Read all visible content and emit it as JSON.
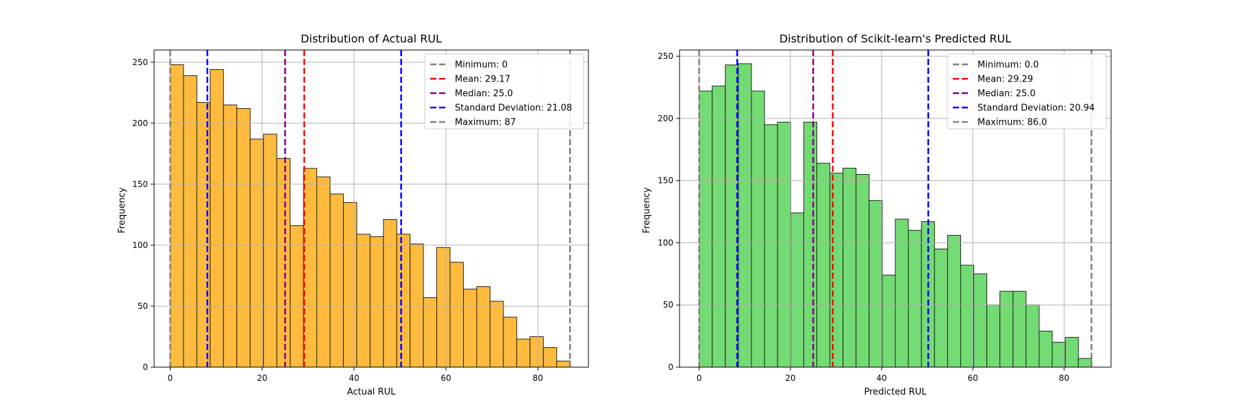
{
  "chart_data": [
    {
      "type": "bar",
      "title": "Distribution of Actual RUL",
      "xlabel": "Actual RUL",
      "ylabel": "Frequency",
      "xlim": [
        -3.5,
        91
      ],
      "ylim": [
        0,
        260
      ],
      "xticks": [
        "0",
        "20",
        "40",
        "60",
        "80"
      ],
      "xtick_values": [
        0,
        20,
        40,
        60,
        80
      ],
      "yticks": [
        "0",
        "50",
        "100",
        "150",
        "200",
        "250"
      ],
      "ytick_values": [
        0,
        50,
        100,
        150,
        200,
        250
      ],
      "grid": true,
      "legend_position": "top-right",
      "bar_color": "#FFB733",
      "bin_start": 0,
      "bin_end": 87,
      "values": [
        248,
        239,
        217,
        244,
        215,
        212,
        187,
        191,
        171,
        116,
        163,
        156,
        142,
        135,
        109,
        107,
        121,
        109,
        101,
        57,
        98,
        86,
        64,
        66,
        54,
        41,
        23,
        25,
        16,
        5
      ],
      "reference_lines": [
        {
          "label": "Minimum: 0",
          "value": 0,
          "color": "#808080"
        },
        {
          "label": "Mean: 29.17",
          "value": 29.17,
          "color": "#ff0000"
        },
        {
          "label": "Median: 25.0",
          "value": 25.0,
          "color": "#800080"
        },
        {
          "label": "Standard Deviation: 21.08",
          "value": 8.09,
          "value2": 50.25,
          "color": "#0000ff"
        },
        {
          "label": "Maximum: 87",
          "value": 87,
          "color": "#808080"
        }
      ]
    },
    {
      "type": "bar",
      "title": "Distribution of Scikit-learn's Predicted RUL",
      "xlabel": "Predicted RUL",
      "ylabel": "Frequency",
      "xlim": [
        -4.3,
        90.3
      ],
      "ylim": [
        0,
        255
      ],
      "xticks": [
        "0",
        "20",
        "40",
        "60",
        "80"
      ],
      "xtick_values": [
        0,
        20,
        40,
        60,
        80
      ],
      "yticks": [
        "0",
        "50",
        "100",
        "150",
        "200",
        "250"
      ],
      "ytick_values": [
        0,
        50,
        100,
        150,
        200,
        250
      ],
      "grid": true,
      "legend_position": "top-right",
      "bar_color": "#6BD96B",
      "bin_start": 0,
      "bin_end": 86,
      "values": [
        222,
        226,
        243,
        244,
        222,
        195,
        197,
        124,
        197,
        164,
        156,
        160,
        155,
        134,
        74,
        119,
        110,
        117,
        95,
        106,
        82,
        75,
        50,
        61,
        61,
        50,
        29,
        20,
        24,
        7
      ],
      "reference_lines": [
        {
          "label": "Minimum: 0.0",
          "value": 0,
          "color": "#808080"
        },
        {
          "label": "Mean: 29.29",
          "value": 29.29,
          "color": "#ff0000"
        },
        {
          "label": "Median: 25.0",
          "value": 25.0,
          "color": "#800080"
        },
        {
          "label": "Standard Deviation: 20.94",
          "value": 8.35,
          "value2": 50.23,
          "color": "#0000ff"
        },
        {
          "label": "Maximum: 86.0",
          "value": 86,
          "color": "#808080"
        }
      ]
    }
  ]
}
